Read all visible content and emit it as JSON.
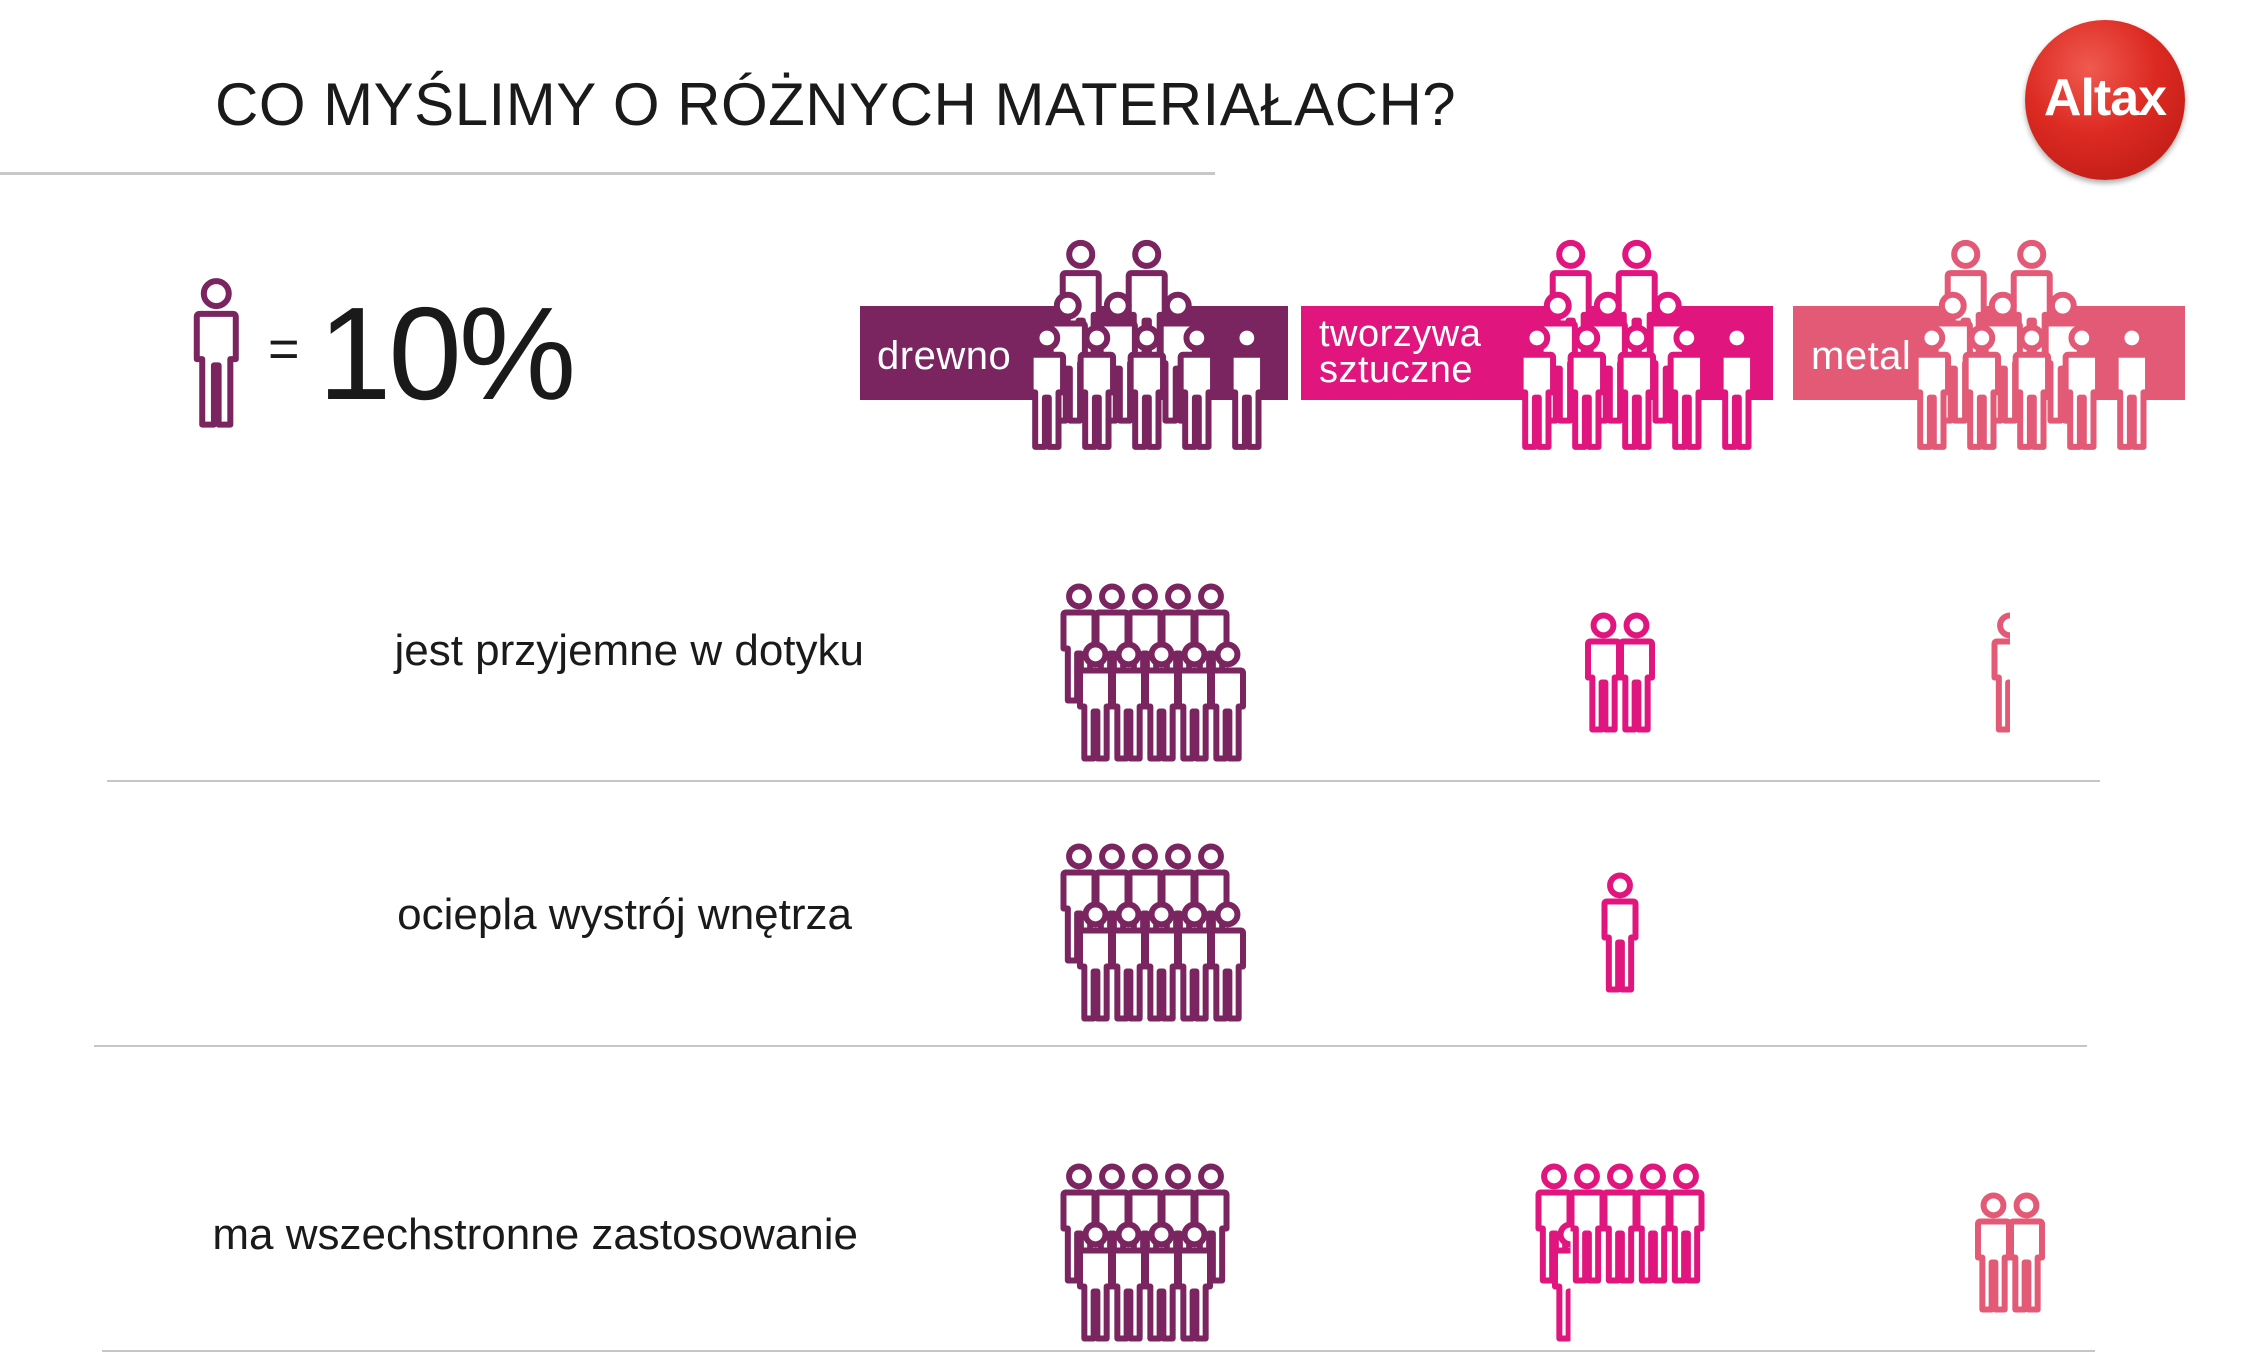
{
  "title": "CO MYŚLIMY O RÓŻNYCH MATERIAŁACH?",
  "logo": {
    "text": "Altax",
    "color": "#dc2a22"
  },
  "legend": {
    "equals": "=",
    "value": "10%",
    "icon": "person-icon",
    "color": "#7a2460"
  },
  "colors": {
    "drewno": "#7a2460",
    "tworzywa": "#e0167e",
    "metal": "#e25a75"
  },
  "chart_data": {
    "type": "pictogram",
    "unit": "10%",
    "categories": [
      "drewno",
      "tworzywa sztuczne",
      "metal"
    ],
    "rows": [
      {
        "label": "jest przyjemne w dotyku",
        "values_percent": [
          100,
          20,
          5
        ]
      },
      {
        "label": "ociepla wystrój wnętrza",
        "values_percent": [
          100,
          10,
          0
        ]
      },
      {
        "label": "ma wszechstronne zastosowanie",
        "values_percent": [
          90,
          55,
          20
        ]
      }
    ]
  }
}
